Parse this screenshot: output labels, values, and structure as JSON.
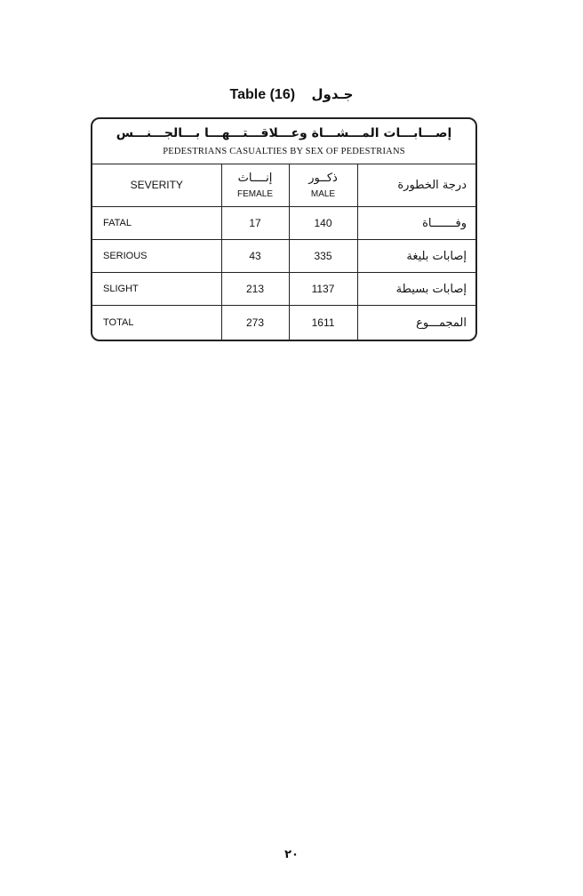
{
  "title": {
    "en": "Table (16)",
    "ar": "جـدول"
  },
  "table": {
    "title_ar": "إصـــابـــات المـــشـــاة وعـــلاقـــتـــهـــا بـــالجـــنـــس",
    "title_en": "PEDESTRIANS CASUALTIES BY SEX OF PEDESTRIANS",
    "headers": {
      "severity_en": "SEVERITY",
      "female_ar": "إنــــاث",
      "female_en": "FEMALE",
      "male_ar": "ذكــور",
      "male_en": "MALE",
      "severity_ar": "درجة الخطورة"
    },
    "rows": [
      {
        "en": "FATAL",
        "female": "17",
        "male": "140",
        "ar": "وفـــــــاة"
      },
      {
        "en": "SERIOUS",
        "female": "43",
        "male": "335",
        "ar": "إصابات بليغة"
      },
      {
        "en": "SLIGHT",
        "female": "213",
        "male": "1137",
        "ar": "إصابات بسيطة"
      },
      {
        "en": "TOTAL",
        "female": "273",
        "male": "1611",
        "ar": "المجمـــوع"
      }
    ]
  },
  "page_number": "٢٠"
}
